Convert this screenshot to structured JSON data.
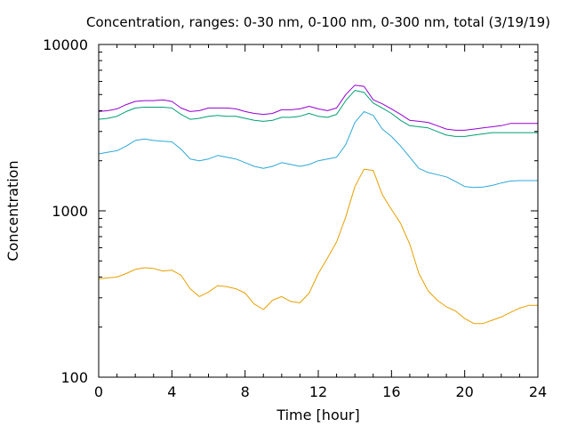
{
  "chart_data": {
    "type": "line",
    "title": "Concentration, ranges: 0-30 nm, 0-100 nm, 0-300 nm, total (3/19/19)",
    "xlabel": "Time [hour]",
    "ylabel": "Concentration",
    "xlim": [
      0,
      24
    ],
    "ylim": [
      100,
      10000
    ],
    "yscale": "log",
    "grid": false,
    "legend": "none",
    "x_ticks": [
      "0",
      "4",
      "8",
      "12",
      "16",
      "20",
      "24"
    ],
    "y_ticks": [
      "100",
      "1000",
      "10000"
    ],
    "x": [
      0,
      0.5,
      1,
      1.5,
      2,
      2.5,
      3,
      3.5,
      4,
      4.5,
      5,
      5.5,
      6,
      6.5,
      7,
      7.5,
      8,
      8.5,
      9,
      9.5,
      10,
      10.5,
      11,
      11.5,
      12,
      12.5,
      13,
      13.5,
      14,
      14.5,
      15,
      15.5,
      16,
      16.5,
      17,
      17.5,
      18,
      18.5,
      19,
      19.5,
      20,
      20.5,
      21,
      21.5,
      22,
      22.5,
      23,
      23.5,
      24
    ],
    "series": [
      {
        "color": "#e6a000",
        "values": [
          390,
          395,
          400,
          420,
          445,
          455,
          450,
          435,
          440,
          410,
          340,
          305,
          325,
          355,
          350,
          340,
          320,
          275,
          255,
          290,
          305,
          285,
          280,
          320,
          420,
          520,
          650,
          920,
          1400,
          1780,
          1750,
          1250,
          1020,
          840,
          630,
          420,
          330,
          290,
          265,
          250,
          225,
          210,
          210,
          220,
          230,
          245,
          260,
          270,
          270
        ]
      },
      {
        "color": "#2ea7d8",
        "values": [
          2200,
          2250,
          2300,
          2450,
          2650,
          2700,
          2650,
          2620,
          2600,
          2350,
          2050,
          2000,
          2050,
          2150,
          2100,
          2050,
          1950,
          1850,
          1800,
          1850,
          1950,
          1900,
          1850,
          1900,
          2000,
          2050,
          2100,
          2500,
          3400,
          3950,
          3750,
          3100,
          2800,
          2450,
          2100,
          1800,
          1700,
          1650,
          1600,
          1500,
          1400,
          1380,
          1390,
          1420,
          1470,
          1510,
          1520,
          1520,
          1520
        ]
      },
      {
        "color": "#009e73",
        "values": [
          3550,
          3600,
          3700,
          3950,
          4150,
          4200,
          4200,
          4200,
          4150,
          3800,
          3550,
          3600,
          3700,
          3750,
          3700,
          3700,
          3600,
          3500,
          3450,
          3500,
          3650,
          3650,
          3700,
          3850,
          3700,
          3650,
          3800,
          4600,
          5300,
          5150,
          4450,
          4150,
          3850,
          3500,
          3250,
          3200,
          3150,
          3000,
          2850,
          2800,
          2800,
          2850,
          2900,
          2950,
          2950,
          2950,
          2950,
          2950,
          2950
        ]
      },
      {
        "color": "#9400d3",
        "values": [
          3950,
          4000,
          4100,
          4350,
          4550,
          4600,
          4600,
          4650,
          4550,
          4150,
          3950,
          4000,
          4150,
          4150,
          4150,
          4100,
          3950,
          3850,
          3800,
          3850,
          4050,
          4050,
          4100,
          4250,
          4100,
          4000,
          4150,
          5000,
          5700,
          5600,
          4650,
          4400,
          4100,
          3800,
          3500,
          3450,
          3400,
          3250,
          3100,
          3050,
          3050,
          3100,
          3150,
          3200,
          3250,
          3350,
          3350,
          3350,
          3350
        ]
      }
    ]
  }
}
